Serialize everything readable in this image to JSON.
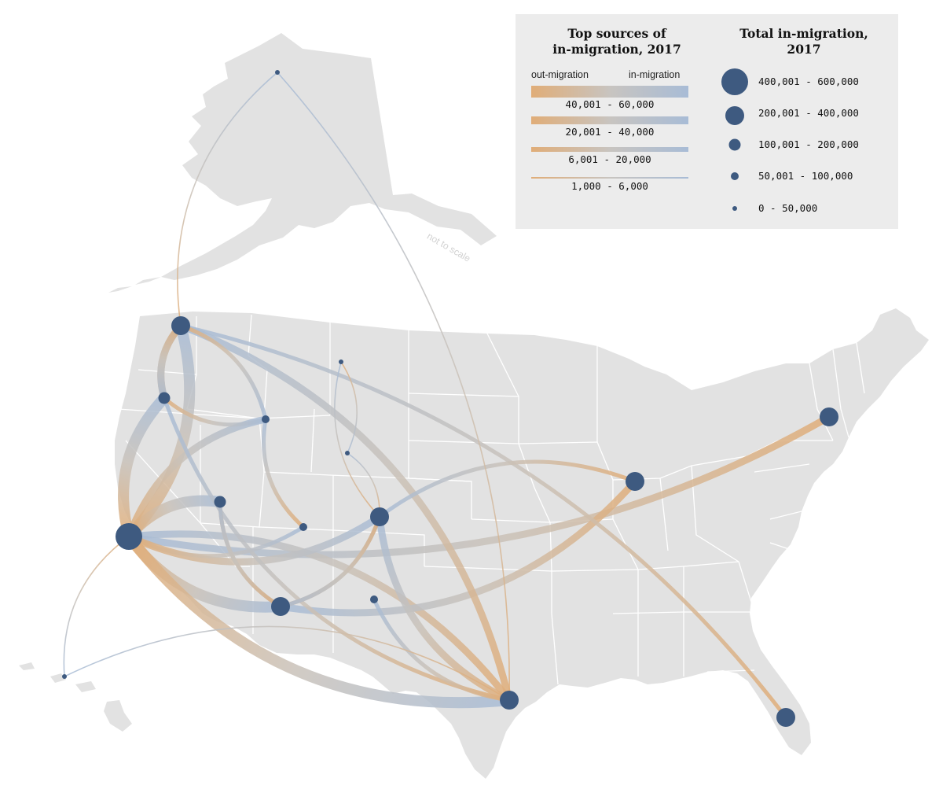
{
  "legend": {
    "flows_title": "Top sources of\nin-migration, 2017",
    "out_label": "out-migration",
    "in_label": "in-migration",
    "flow_ranges": [
      "40,001 - 60,000",
      "20,001 - 40,000",
      "6,001 - 20,000",
      "1,000 - 6,000"
    ],
    "total_title": "Total in-migration,\n2017",
    "circle_ranges": [
      "400,001 - 600,000",
      "200,001 - 400,000",
      "100,001 - 200,000",
      "50,001 - 100,000",
      "0 - 50,000"
    ]
  },
  "inset_note": "not to scale",
  "colors": {
    "land": "#e2e2e2",
    "borders": "#ffffff",
    "node": "#3e5a80",
    "out_color": "#e0ad78",
    "in_color": "#a8bcd6",
    "legend_bg": "#ececec"
  },
  "map_data": {
    "nodes": [
      {
        "id": "California",
        "size_class": "400,001 - 600,000"
      },
      {
        "id": "Texas",
        "size_class": "200,001 - 400,000"
      },
      {
        "id": "Florida",
        "size_class": "200,001 - 400,000"
      },
      {
        "id": "Washington",
        "size_class": "200,001 - 400,000"
      },
      {
        "id": "Arizona",
        "size_class": "200,001 - 400,000"
      },
      {
        "id": "Colorado",
        "size_class": "200,001 - 400,000"
      },
      {
        "id": "Illinois",
        "size_class": "200,001 - 400,000"
      },
      {
        "id": "New York",
        "size_class": "200,001 - 400,000"
      },
      {
        "id": "Oregon",
        "size_class": "100,001 - 200,000"
      },
      {
        "id": "Nevada",
        "size_class": "100,001 - 200,000"
      },
      {
        "id": "Idaho",
        "size_class": "50,001 - 100,000"
      },
      {
        "id": "New Mexico",
        "size_class": "50,001 - 100,000"
      },
      {
        "id": "Utah",
        "size_class": "50,001 - 100,000"
      },
      {
        "id": "Montana",
        "size_class": "0 - 50,000"
      },
      {
        "id": "Wyoming",
        "size_class": "0 - 50,000"
      },
      {
        "id": "Alaska",
        "size_class": "0 - 50,000"
      },
      {
        "id": "Hawaii",
        "size_class": "0 - 50,000"
      }
    ],
    "flows": [
      {
        "from": "California",
        "to": "Washington",
        "class": "40,001 - 60,000"
      },
      {
        "from": "California",
        "to": "Oregon",
        "class": "40,001 - 60,000"
      },
      {
        "from": "California",
        "to": "Arizona",
        "class": "40,001 - 60,000"
      },
      {
        "from": "California",
        "to": "Nevada",
        "class": "40,001 - 60,000"
      },
      {
        "from": "California",
        "to": "Texas",
        "class": "40,001 - 60,000"
      },
      {
        "from": "New York",
        "to": "California",
        "class": "20,001 - 40,000"
      },
      {
        "from": "Texas",
        "to": "California",
        "class": "20,001 - 40,000"
      },
      {
        "from": "Illinois",
        "to": "Arizona",
        "class": "20,001 - 40,000"
      },
      {
        "from": "Florida",
        "to": "Washington",
        "class": "6,001 - 20,000"
      },
      {
        "from": "Oregon",
        "to": "Washington",
        "class": "20,001 - 40,000"
      },
      {
        "from": "Washington",
        "to": "Oregon",
        "class": "20,001 - 40,000"
      },
      {
        "from": "Texas",
        "to": "Colorado",
        "class": "20,001 - 40,000"
      },
      {
        "from": "California",
        "to": "Colorado",
        "class": "20,001 - 40,000"
      },
      {
        "from": "California",
        "to": "Idaho",
        "class": "20,001 - 40,000"
      },
      {
        "from": "Texas",
        "to": "Washington",
        "class": "20,001 - 40,000"
      },
      {
        "from": "Texas",
        "to": "Oregon",
        "class": "6,001 - 20,000"
      },
      {
        "from": "Arizona",
        "to": "Colorado",
        "class": "6,001 - 20,000"
      },
      {
        "from": "Colorado",
        "to": "Arizona",
        "class": "6,001 - 20,000"
      },
      {
        "from": "Illinois",
        "to": "Colorado",
        "class": "6,001 - 20,000"
      },
      {
        "from": "Utah",
        "to": "Idaho",
        "class": "6,001 - 20,000"
      },
      {
        "from": "California",
        "to": "Utah",
        "class": "6,001 - 20,000"
      },
      {
        "from": "Washington",
        "to": "Idaho",
        "class": "6,001 - 20,000"
      },
      {
        "from": "Oregon",
        "to": "Idaho",
        "class": "6,001 - 20,000"
      },
      {
        "from": "Texas",
        "to": "New Mexico",
        "class": "6,001 - 20,000"
      },
      {
        "from": "Nevada",
        "to": "Arizona",
        "class": "6,001 - 20,000"
      },
      {
        "from": "Arizona",
        "to": "Nevada",
        "class": "6,001 - 20,000"
      },
      {
        "from": "California",
        "to": "Hawaii",
        "class": "1,000 - 6,000"
      },
      {
        "from": "Washington",
        "to": "Alaska",
        "class": "1,000 - 6,000"
      },
      {
        "from": "Texas",
        "to": "Alaska",
        "class": "1,000 - 6,000"
      },
      {
        "from": "Colorado",
        "to": "Montana",
        "class": "1,000 - 6,000"
      },
      {
        "from": "Colorado",
        "to": "Wyoming",
        "class": "1,000 - 6,000"
      },
      {
        "from": "Montana",
        "to": "Wyoming",
        "class": "1,000 - 6,000"
      },
      {
        "from": "Texas",
        "to": "Hawaii",
        "class": "1,000 - 6,000"
      }
    ]
  }
}
